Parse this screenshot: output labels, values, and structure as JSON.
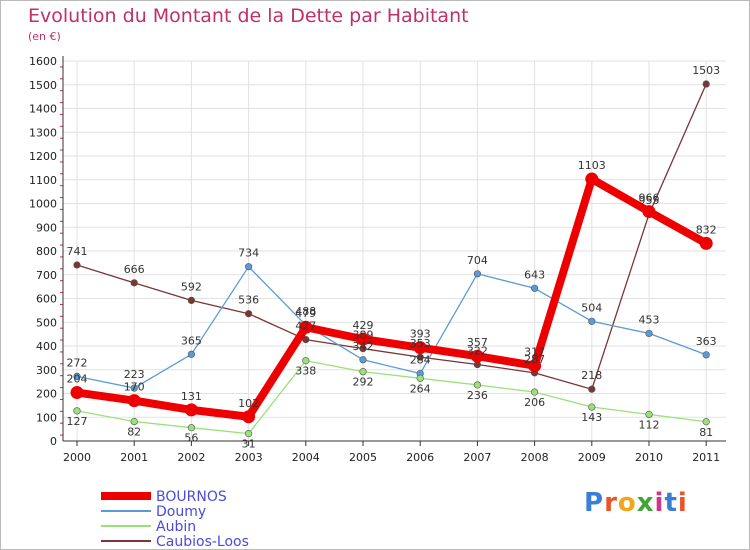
{
  "title": "Evolution du Montant de la Dette par Habitant",
  "subtitle": "(en €)",
  "logo": {
    "text": "Proxiti",
    "colors": [
      "#3a7fd5",
      "#e8552b",
      "#f2a51a",
      "#3fa535",
      "#d63384",
      "#3a7fd5",
      "#e8552b"
    ]
  },
  "chart_data": {
    "type": "line",
    "title": "Evolution du Montant de la Dette par Habitant",
    "ylabel": "(en €)",
    "xlabel": "",
    "ylim": [
      0,
      1600
    ],
    "yticks": [
      0,
      100,
      200,
      300,
      400,
      500,
      600,
      700,
      800,
      900,
      1000,
      1100,
      1200,
      1300,
      1400,
      1500,
      1600
    ],
    "categories": [
      "2000",
      "2001",
      "2002",
      "2003",
      "2004",
      "2005",
      "2006",
      "2007",
      "2008",
      "2009",
      "2010",
      "2011"
    ],
    "series": [
      {
        "name": "BOURNOS",
        "color": "#ee0000",
        "values": [
          204,
          170,
          131,
          102,
          479,
          429,
          393,
          357,
          317,
          1103,
          966,
          832
        ]
      },
      {
        "name": "Doumy",
        "color": "#5b9bd5",
        "values": [
          272,
          223,
          365,
          734,
          488,
          342,
          284,
          704,
          643,
          504,
          453,
          363
        ]
      },
      {
        "name": "Aubin",
        "color": "#9be07a",
        "values": [
          127,
          82,
          56,
          31,
          338,
          292,
          264,
          236,
          206,
          143,
          112,
          81
        ]
      },
      {
        "name": "Caubios-Loos",
        "color": "#7a3535",
        "values": [
          741,
          666,
          592,
          536,
          427,
          389,
          353,
          322,
          287,
          218,
          955,
          1503
        ]
      }
    ]
  }
}
